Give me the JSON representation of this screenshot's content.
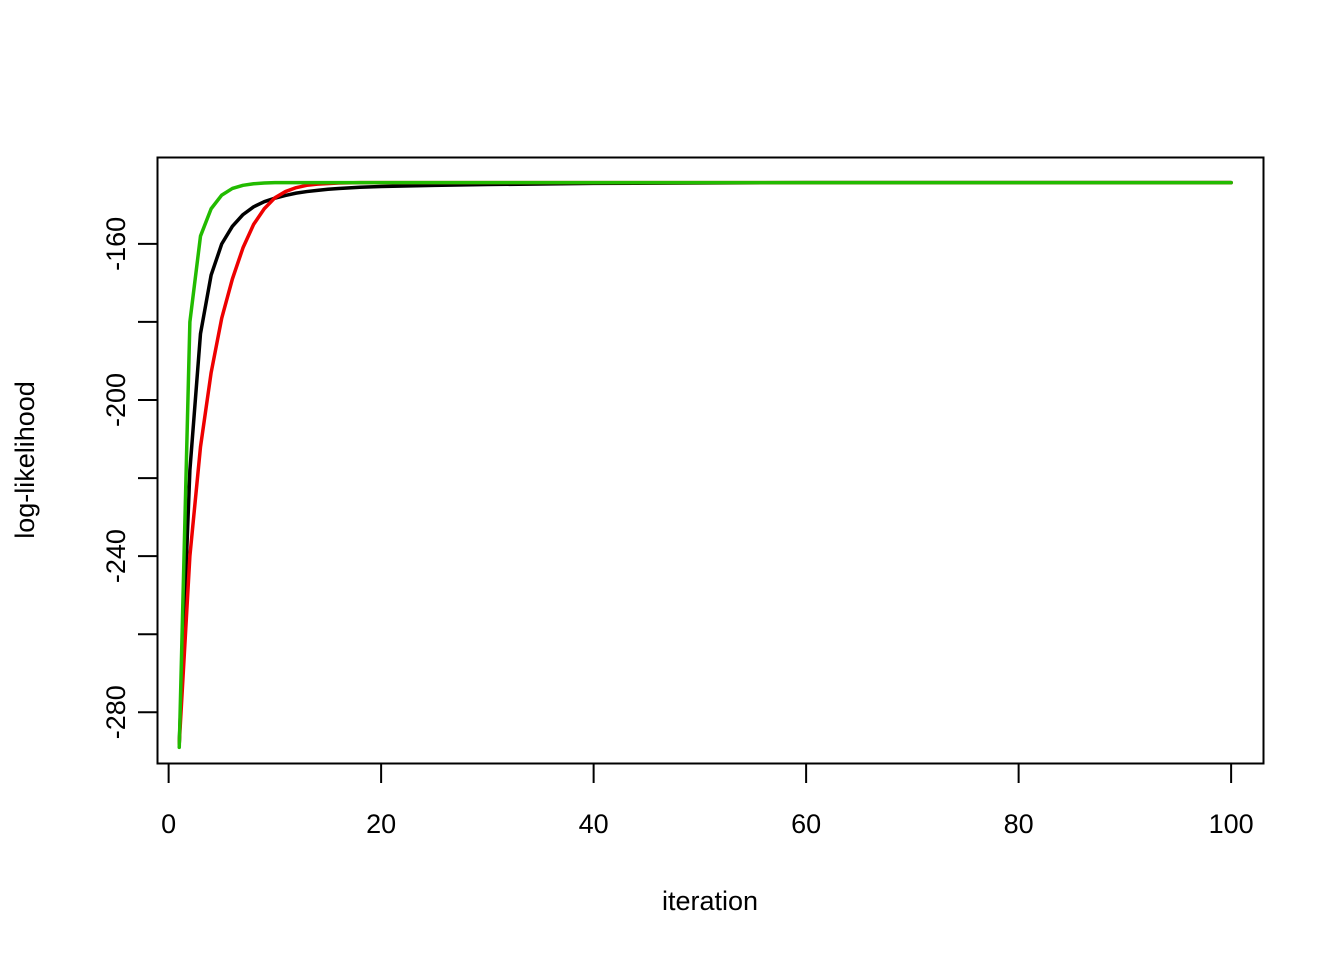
{
  "chart_data": {
    "type": "line",
    "title": "",
    "xlabel": "iteration",
    "ylabel": "log-likelihood",
    "xlim": [
      -1,
      103
    ],
    "ylim": [
      -293,
      -138
    ],
    "x_ticks": [
      0,
      20,
      40,
      60,
      80,
      100
    ],
    "y_ticks": [
      -160,
      -180,
      -200,
      -220,
      -240,
      -260,
      -280
    ],
    "y_tick_labels": [
      "-160",
      "",
      "-200",
      "",
      "-240",
      "",
      "-280"
    ],
    "grid": false,
    "legend": "none",
    "series": [
      {
        "color": "#000000",
        "x": [
          1,
          2,
          3,
          4,
          5,
          6,
          7,
          8,
          9,
          10,
          11,
          12,
          13,
          14,
          15,
          16,
          18,
          20,
          25,
          30,
          40,
          50,
          60,
          70,
          80,
          90,
          100
        ],
        "y": [
          -288,
          -218,
          -183,
          -168,
          -160,
          -155.5,
          -152.5,
          -150.5,
          -149.2,
          -148.3,
          -147.6,
          -147.0,
          -146.6,
          -146.3,
          -146.0,
          -145.8,
          -145.5,
          -145.3,
          -145.0,
          -144.8,
          -144.5,
          -144.4,
          -144.3,
          -144.3,
          -144.3,
          -144.3,
          -144.3
        ]
      },
      {
        "color": "#ee0000",
        "x": [
          1,
          2,
          3,
          4,
          5,
          6,
          7,
          8,
          9,
          10,
          11,
          12,
          13,
          14,
          16,
          18,
          20,
          25,
          30,
          40,
          50,
          60,
          70,
          80,
          90,
          100
        ],
        "y": [
          -288,
          -240,
          -212,
          -193,
          -179,
          -169,
          -161,
          -155,
          -151,
          -148.2,
          -146.6,
          -145.6,
          -145.0,
          -144.7,
          -144.4,
          -144.3,
          -144.3,
          -144.3,
          -144.3,
          -144.3,
          -144.3,
          -144.3,
          -144.3,
          -144.3,
          -144.3,
          -144.3
        ]
      },
      {
        "color": "#22bb00",
        "x": [
          1,
          2,
          3,
          4,
          5,
          6,
          7,
          8,
          9,
          10,
          12,
          15,
          20,
          30,
          40,
          50,
          60,
          70,
          80,
          90,
          100
        ],
        "y": [
          -289,
          -180,
          -158,
          -151,
          -147.5,
          -145.8,
          -145.0,
          -144.6,
          -144.4,
          -144.3,
          -144.3,
          -144.3,
          -144.3,
          -144.3,
          -144.3,
          -144.3,
          -144.3,
          -144.3,
          -144.3,
          -144.3,
          -144.3
        ]
      }
    ]
  }
}
